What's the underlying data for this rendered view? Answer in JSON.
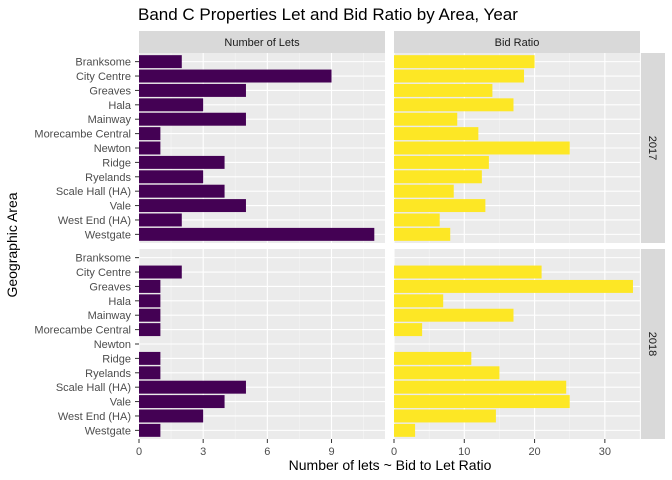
{
  "chart_data": {
    "type": "bar",
    "orientation": "horizontal",
    "title": "Band C Properties Let and Bid Ratio by Area, Year",
    "xlabel": "Number of lets ~ Bid to Let Ratio",
    "ylabel": "Geographic Area",
    "categories": [
      "Branksome",
      "City Centre",
      "Greaves",
      "Hala",
      "Mainway",
      "Morecambe Central",
      "Newton",
      "Ridge",
      "Ryelands",
      "Scale Hall (HA)",
      "Vale",
      "West End (HA)",
      "Westgate"
    ],
    "columns": [
      {
        "label": "Number of Lets",
        "xlim": [
          0,
          11.5
        ],
        "xticks": [
          0,
          3,
          6,
          9
        ],
        "color": "#440154"
      },
      {
        "label": "Bid Ratio",
        "xlim": [
          0,
          35
        ],
        "xticks": [
          0,
          10,
          20,
          30
        ],
        "color": "#FDE725"
      }
    ],
    "rows": [
      {
        "label": "2017",
        "series": [
          {
            "values": [
              2,
              9,
              5,
              3,
              5,
              1,
              1,
              4,
              3,
              4,
              5,
              2,
              11
            ]
          },
          {
            "values": [
              20,
              18.5,
              14,
              17,
              9,
              12,
              25,
              13.5,
              12.5,
              8.5,
              13,
              6.5,
              8
            ]
          }
        ]
      },
      {
        "label": "2018",
        "series": [
          {
            "values": [
              0,
              2,
              1,
              1,
              1,
              1,
              0,
              1,
              1,
              5,
              4,
              3,
              1
            ]
          },
          {
            "values": [
              0,
              21,
              34,
              7,
              17,
              4,
              0,
              11,
              15,
              24.5,
              25,
              14.5,
              3
            ]
          }
        ]
      }
    ],
    "grid": true,
    "legend": "none"
  }
}
